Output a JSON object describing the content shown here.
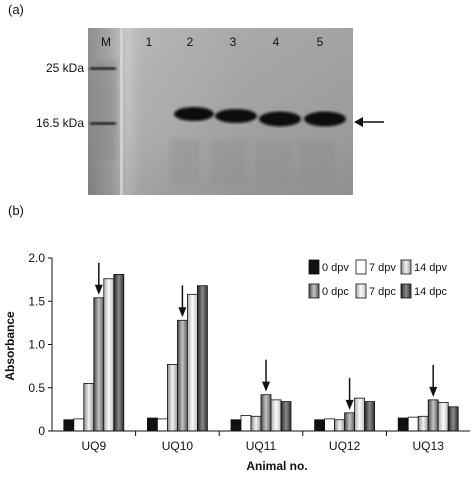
{
  "panel_a": {
    "label": "(a)",
    "lanes": [
      "M",
      "1",
      "2",
      "3",
      "4",
      "5"
    ],
    "markers": [
      "25 kDa",
      "16.5 kDa"
    ]
  },
  "panel_b": {
    "label": "(b)"
  },
  "colors": {
    "gel_background": "#a9a9a9",
    "band": "#101010"
  },
  "chart_data": {
    "type": "bar",
    "categories": [
      "UQ9",
      "UQ10",
      "UQ11",
      "UQ12",
      "UQ13"
    ],
    "xlabel": "Animal no.",
    "ylabel": "Absorbance",
    "ylim": [
      0,
      2.0
    ],
    "yticks": [
      "0",
      "0.5",
      "1.0",
      "1.5",
      "2.0"
    ],
    "legend_position": "top-right",
    "series": [
      {
        "name": "0 dpv",
        "style": "black",
        "values": [
          0.13,
          0.15,
          0.13,
          0.13,
          0.15
        ]
      },
      {
        "name": "7 dpv",
        "style": "white",
        "values": [
          0.14,
          0.14,
          0.18,
          0.14,
          0.16
        ]
      },
      {
        "name": "14 dpv",
        "style": "light-gradient",
        "values": [
          0.55,
          0.77,
          0.17,
          0.13,
          0.17
        ]
      },
      {
        "name": "0 dpc",
        "style": "mid-gradient",
        "values": [
          1.54,
          1.28,
          0.42,
          0.21,
          0.36
        ]
      },
      {
        "name": "7 dpc",
        "style": "pale-gradient",
        "values": [
          1.76,
          1.58,
          0.36,
          0.38,
          0.33
        ]
      },
      {
        "name": "14 dpc",
        "style": "dark-gradient",
        "values": [
          1.81,
          1.68,
          0.34,
          0.34,
          0.28
        ]
      }
    ],
    "arrow_series_index": [
      3,
      3,
      3,
      3,
      3
    ]
  }
}
